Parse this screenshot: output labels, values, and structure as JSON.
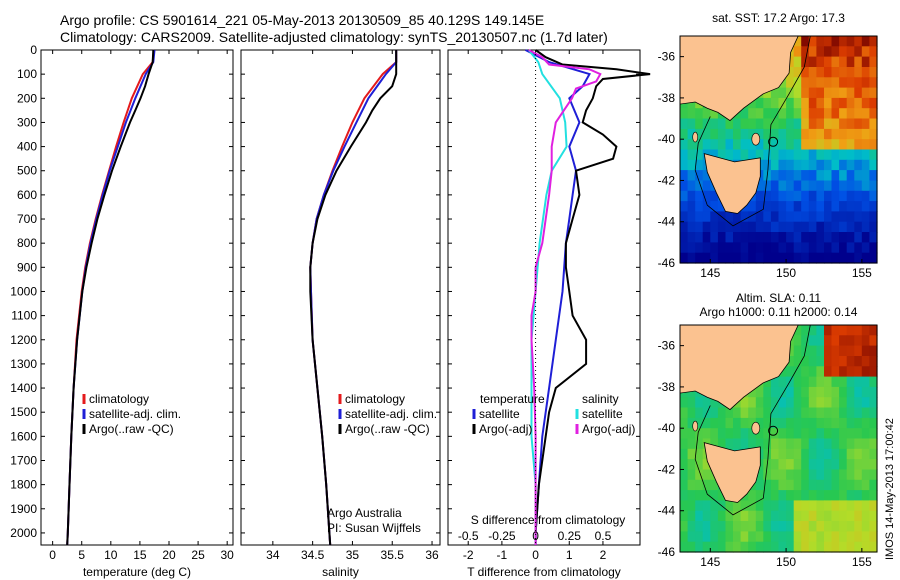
{
  "header": {
    "line1": "Argo profile: CS 5901614_221 05-May-2013 20130509_85 40.129S 149.145E",
    "line2": "Climatology: CARS2009. Satellite-adjusted climatology: synTS_20130507.nc (1.7d later)"
  },
  "colors": {
    "climatology": "#e41a1c",
    "satellite": "#1f1fd6",
    "argo": "#000000",
    "s_sat": "#22e0e0",
    "s_argo": "#e020e0"
  },
  "chart_data": [
    {
      "type": "line",
      "xlabel": "temperature (deg C)",
      "xlim": [
        -2,
        31
      ],
      "xticks": [
        0,
        5,
        10,
        15,
        20,
        25,
        30
      ],
      "ylim": [
        0,
        2050
      ],
      "yticks": [
        0,
        100,
        200,
        300,
        400,
        500,
        600,
        700,
        800,
        900,
        1000,
        1100,
        1200,
        1300,
        1400,
        1500,
        1600,
        1700,
        1800,
        1900,
        2000
      ],
      "legend": [
        "climatology",
        "satellite-adj. clim.",
        "Argo(..raw -QC)"
      ],
      "series": [
        {
          "name": "climatology",
          "depth": [
            0,
            50,
            100,
            200,
            300,
            400,
            500,
            600,
            700,
            800,
            900,
            1000,
            1200,
            1400,
            1600,
            1800,
            2000,
            2050
          ],
          "values": [
            17.4,
            17.2,
            15.5,
            13.6,
            12.2,
            10.9,
            9.7,
            8.5,
            7.4,
            6.4,
            5.6,
            5.0,
            4.1,
            3.6,
            3.2,
            2.9,
            2.6,
            2.5
          ]
        },
        {
          "name": "satellite-adj. clim.",
          "depth": [
            0,
            50,
            100,
            200,
            300,
            400,
            500,
            600,
            700,
            800,
            900,
            1000,
            1200,
            1400,
            1600,
            1800,
            2000,
            2050
          ],
          "values": [
            17.5,
            17.3,
            16.0,
            14.2,
            12.6,
            11.2,
            9.8,
            8.6,
            7.5,
            6.5,
            5.7,
            5.1,
            4.2,
            3.6,
            3.2,
            2.9,
            2.6,
            2.5
          ]
        },
        {
          "name": "Argo(..raw -QC)",
          "depth": [
            0,
            50,
            100,
            150,
            200,
            250,
            300,
            400,
            500,
            600,
            700,
            800,
            900,
            1000,
            1200,
            1400,
            1600,
            1800,
            2000,
            2050
          ],
          "values": [
            17.3,
            17.2,
            16.5,
            15.9,
            15.1,
            14.2,
            13.3,
            11.7,
            10.2,
            8.9,
            7.7,
            6.7,
            5.8,
            5.1,
            4.2,
            3.6,
            3.2,
            2.9,
            2.6,
            2.5
          ]
        }
      ]
    },
    {
      "type": "line",
      "xlabel": "salinity",
      "xlim": [
        33.6,
        36.1
      ],
      "xticks": [
        34,
        34.5,
        35,
        35.5,
        36
      ],
      "ylim": [
        0,
        2050
      ],
      "legend": [
        "climatology",
        "satellite-adj. clim.",
        "Argo(..raw -QC)"
      ],
      "annotation": [
        "Argo Australia",
        "PI: Susan Wijffels"
      ],
      "series": [
        {
          "name": "climatology",
          "depth": [
            0,
            50,
            100,
            200,
            300,
            400,
            500,
            600,
            700,
            800,
            900,
            1000,
            1200,
            1400,
            1600,
            1800,
            2000,
            2050
          ],
          "values": [
            35.55,
            35.55,
            35.38,
            35.15,
            35.0,
            34.87,
            34.75,
            34.64,
            34.55,
            34.5,
            34.47,
            34.48,
            34.5,
            34.56,
            34.62,
            34.67,
            34.71,
            34.72
          ]
        },
        {
          "name": "satellite-adj. clim.",
          "depth": [
            0,
            50,
            100,
            200,
            300,
            400,
            500,
            600,
            700,
            800,
            900,
            1000,
            1200,
            1400,
            1600,
            1800,
            2000,
            2050
          ],
          "values": [
            35.55,
            35.55,
            35.42,
            35.2,
            35.05,
            34.9,
            34.76,
            34.64,
            34.55,
            34.5,
            34.47,
            34.48,
            34.5,
            34.56,
            34.62,
            34.67,
            34.71,
            34.72
          ]
        },
        {
          "name": "Argo(..raw -QC)",
          "depth": [
            0,
            50,
            100,
            150,
            200,
            250,
            300,
            400,
            500,
            600,
            700,
            800,
            900,
            1000,
            1200,
            1400,
            1600,
            1800,
            2000,
            2050
          ],
          "values": [
            35.55,
            35.55,
            35.55,
            35.5,
            35.35,
            35.25,
            35.17,
            34.98,
            34.8,
            34.66,
            34.56,
            34.5,
            34.47,
            34.47,
            34.5,
            34.56,
            34.62,
            34.67,
            34.71,
            34.72
          ]
        }
      ]
    },
    {
      "type": "line",
      "xlabel": "T difference from climatology",
      "xlabel_top": "S difference from climatology",
      "xlim": [
        -2.6,
        3.1
      ],
      "xticks": [
        -2,
        -1,
        0,
        1,
        2
      ],
      "xtick_labels": [
        "-2",
        "-1",
        "0",
        "1",
        "2"
      ],
      "xticks_top": [
        "-0.5",
        "-0.25",
        "0",
        "0.25",
        "0.5"
      ],
      "ylim": [
        0,
        2050
      ],
      "legend": {
        "temperature": [
          "satellite",
          "Argo(-adj)"
        ],
        "salinity": [
          "satellite",
          "Argo(-adj)"
        ]
      },
      "legend_titles": [
        "temperature",
        "salinity"
      ],
      "series": [
        {
          "name": "satellite",
          "depth": [
            0,
            50,
            100,
            150,
            200,
            300,
            400,
            500,
            600,
            700,
            800,
            1000,
            1200,
            1400,
            1600,
            1800,
            2000,
            2050
          ],
          "values": [
            -0.3,
            0.4,
            1.6,
            1.4,
            1.0,
            1.3,
            1.0,
            1.2,
            1.1,
            1.0,
            0.9,
            0.8,
            0.6,
            0.4,
            0.2,
            0.1,
            0.0,
            0.0
          ]
        },
        {
          "name": "Argo(-adj)",
          "depth": [
            0,
            30,
            60,
            80,
            100,
            120,
            150,
            200,
            250,
            300,
            350,
            400,
            450,
            500,
            600,
            700,
            800,
            900,
            1000,
            1100,
            1200,
            1300,
            1400,
            1500,
            1600,
            1800,
            2000,
            2050
          ],
          "values": [
            0.0,
            0.3,
            0.8,
            2.4,
            3.4,
            2.0,
            1.8,
            1.7,
            1.5,
            1.4,
            2.0,
            2.4,
            2.3,
            1.2,
            1.3,
            1.1,
            0.9,
            0.9,
            1.0,
            1.1,
            1.5,
            1.5,
            0.6,
            0.4,
            0.3,
            0.1,
            0.0,
            0.0
          ]
        },
        {
          "name": "S satellite",
          "depth": [
            0,
            50,
            100,
            200,
            300,
            400,
            500,
            600,
            800,
            1000,
            1200,
            1400,
            1600,
            1800,
            2000,
            2050
          ],
          "values": [
            -0.05,
            0.02,
            0.05,
            0.18,
            0.22,
            0.23,
            0.12,
            0.08,
            0.03,
            0.0,
            -0.03,
            -0.03,
            -0.03,
            0.0,
            0.0,
            0.0
          ]
        },
        {
          "name": "S Argo(-adj)",
          "depth": [
            0,
            30,
            60,
            80,
            100,
            130,
            160,
            200,
            300,
            400,
            500,
            600,
            800,
            900,
            1000,
            1100,
            1200,
            1400,
            1600,
            1800,
            2000,
            2050
          ],
          "values": [
            -0.05,
            0.05,
            0.1,
            0.4,
            0.48,
            0.45,
            0.3,
            0.27,
            0.15,
            0.12,
            0.12,
            0.1,
            0.05,
            0.0,
            0.0,
            -0.03,
            -0.03,
            -0.01,
            0.0,
            0.0,
            0.0,
            0.0
          ]
        }
      ]
    },
    {
      "type": "heatmap",
      "title": "sat. SST: 17.2  Argo: 17.3",
      "xlim": [
        143,
        156
      ],
      "ylim": [
        -46,
        -35
      ],
      "xticks": [
        145,
        150,
        155
      ],
      "yticks": [
        -36,
        -38,
        -40,
        -42,
        -44,
        -46
      ],
      "marker": {
        "lon": 149.145,
        "lat": -40.129
      }
    },
    {
      "type": "heatmap",
      "title": "Altim. SLA: 0.11",
      "subtitle": "Argo h1000: 0.11 h2000: 0.14",
      "xlim": [
        143,
        156
      ],
      "ylim": [
        -46,
        -35
      ],
      "xticks": [
        145,
        150,
        155
      ],
      "yticks": [
        -36,
        -38,
        -40,
        -42,
        -44,
        -46
      ],
      "marker": {
        "lon": 149.145,
        "lat": -40.129
      }
    }
  ],
  "sidebar_stamp": "IMOS 14-May-2013 17:00:42"
}
